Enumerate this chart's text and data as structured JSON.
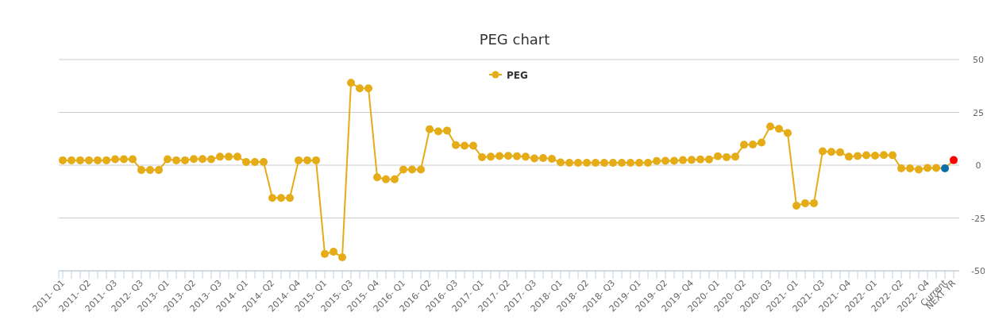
{
  "chart_data": {
    "type": "line",
    "title": "PEG chart",
    "categories": [
      "2011- Q1",
      null,
      null,
      "2011- Q2",
      null,
      null,
      "2011- Q3",
      null,
      null,
      "2012- Q3",
      null,
      null,
      "2013- Q1",
      null,
      null,
      "2013- Q2",
      null,
      null,
      "2013- Q3",
      null,
      null,
      "2014- Q1",
      null,
      null,
      "2014- Q2",
      null,
      null,
      "2014- Q4",
      null,
      null,
      "2015- Q1",
      null,
      null,
      "2015- Q3",
      null,
      null,
      "2015- Q4",
      null,
      null,
      "2016- Q1",
      null,
      null,
      "2016- Q2",
      null,
      null,
      "2016- Q3",
      null,
      null,
      "2017- Q1",
      null,
      null,
      "2017- Q2",
      null,
      null,
      "2017- Q3",
      null,
      null,
      "2018- Q1",
      null,
      null,
      "2018- Q2",
      null,
      null,
      "2018- Q3",
      null,
      null,
      "2019- Q1",
      null,
      null,
      "2019- Q2",
      null,
      null,
      "2019- Q4",
      null,
      null,
      "2020- Q1",
      null,
      null,
      "2020- Q2",
      null,
      null,
      "2020- Q3",
      null,
      null,
      "2021- Q1",
      null,
      null,
      "2021- Q3",
      null,
      null,
      "2021- Q4",
      null,
      null,
      "2022- Q1",
      null,
      null,
      "2022- Q2",
      null,
      null,
      "2022- Q4",
      null,
      "Current",
      "NEXT YR"
    ],
    "series": [
      {
        "name": "PEG",
        "color": "#e5ac17",
        "values": [
          2.3,
          2.3,
          2.3,
          2.3,
          2.3,
          2.3,
          2.8,
          2.8,
          2.8,
          -2.3,
          -2.3,
          -2.3,
          2.8,
          2.3,
          2.3,
          2.9,
          2.9,
          2.8,
          4,
          4,
          4,
          1.5,
          1.5,
          1.5,
          -15.5,
          -15.5,
          -15.5,
          2.3,
          2.3,
          2.3,
          -42,
          -41,
          -43.6,
          39,
          36.4,
          36.4,
          -5.7,
          -6.7,
          -6.7,
          -2.1,
          -2.1,
          -2.1,
          17,
          16,
          16.4,
          9.5,
          9.2,
          9.2,
          3.8,
          4,
          4.3,
          4.4,
          4.2,
          4,
          3.2,
          3.4,
          3,
          1.3,
          1.1,
          1.1,
          1.1,
          1.1,
          1.1,
          1.1,
          1.1,
          1.1,
          1.1,
          1.1,
          2,
          2.1,
          2.1,
          2.4,
          2.5,
          2.7,
          2.7,
          4.2,
          3.8,
          4,
          9.7,
          9.8,
          10.7,
          18.3,
          17.2,
          15.2,
          -19.2,
          -18,
          -18,
          6.6,
          6.3,
          6.1,
          4,
          4.3,
          4.7,
          4.5,
          4.8,
          4.7,
          -1.5,
          -1.5,
          -2.1,
          -1.3,
          -1.3,
          -1.5,
          2.4
        ],
        "colors": [
          "#e5ac17",
          "#e5ac17",
          "#e5ac17",
          "#e5ac17",
          "#e5ac17",
          "#e5ac17",
          "#e5ac17",
          "#e5ac17",
          "#e5ac17",
          "#e5ac17",
          "#e5ac17",
          "#e5ac17",
          "#e5ac17",
          "#e5ac17",
          "#e5ac17",
          "#e5ac17",
          "#e5ac17",
          "#e5ac17",
          "#e5ac17",
          "#e5ac17",
          "#e5ac17",
          "#e5ac17",
          "#e5ac17",
          "#e5ac17",
          "#e5ac17",
          "#e5ac17",
          "#e5ac17",
          "#e5ac17",
          "#e5ac17",
          "#e5ac17",
          "#e5ac17",
          "#e5ac17",
          "#e5ac17",
          "#e5ac17",
          "#e5ac17",
          "#e5ac17",
          "#e5ac17",
          "#e5ac17",
          "#e5ac17",
          "#e5ac17",
          "#e5ac17",
          "#e5ac17",
          "#e5ac17",
          "#e5ac17",
          "#e5ac17",
          "#e5ac17",
          "#e5ac17",
          "#e5ac17",
          "#e5ac17",
          "#e5ac17",
          "#e5ac17",
          "#e5ac17",
          "#e5ac17",
          "#e5ac17",
          "#e5ac17",
          "#e5ac17",
          "#e5ac17",
          "#e5ac17",
          "#e5ac17",
          "#e5ac17",
          "#e5ac17",
          "#e5ac17",
          "#e5ac17",
          "#e5ac17",
          "#e5ac17",
          "#e5ac17",
          "#e5ac17",
          "#e5ac17",
          "#e5ac17",
          "#e5ac17",
          "#e5ac17",
          "#e5ac17",
          "#e5ac17",
          "#e5ac17",
          "#e5ac17",
          "#e5ac17",
          "#e5ac17",
          "#e5ac17",
          "#e5ac17",
          "#e5ac17",
          "#e5ac17",
          "#e5ac17",
          "#e5ac17",
          "#e5ac17",
          "#e5ac17",
          "#e5ac17",
          "#e5ac17",
          "#e5ac17",
          "#e5ac17",
          "#e5ac17",
          "#e5ac17",
          "#e5ac17",
          "#e5ac17",
          "#e5ac17",
          "#e5ac17",
          "#e5ac17",
          "#e5ac17",
          "#e5ac17",
          "#e5ac17",
          "#e5ac17",
          "#e5ac17",
          "#0b6eaa",
          "#ff0000"
        ]
      }
    ],
    "ylim": [
      -50,
      50
    ],
    "yticks": [
      -50,
      -25,
      0,
      25,
      50
    ],
    "grid": "y",
    "legend": "top",
    "marker": "circle",
    "line_style": "solid"
  }
}
